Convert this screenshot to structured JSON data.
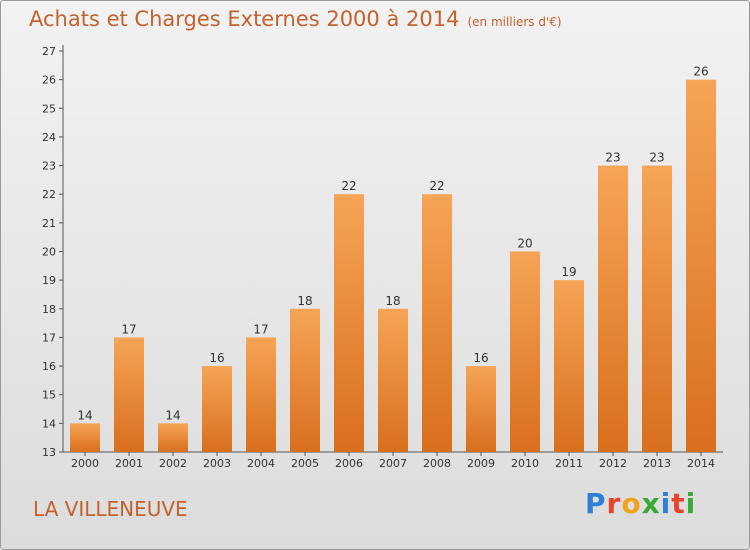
{
  "header": {
    "title": "Achats et Charges Externes 2000 à 2014",
    "unit": "(en milliers d'€)"
  },
  "footer": {
    "place": "LA VILLENEUVE",
    "logo": "Proxiti"
  },
  "colors": {
    "accent": "#c4622e",
    "bar_top": "#f6a456",
    "bar_bottom": "#d86f1d"
  },
  "chart_data": {
    "type": "bar",
    "title": "Achats et Charges Externes 2000 à 2014",
    "subtitle": "(en milliers d'€)",
    "categories": [
      "2000",
      "2001",
      "2002",
      "2003",
      "2004",
      "2005",
      "2006",
      "2007",
      "2008",
      "2009",
      "2010",
      "2011",
      "2012",
      "2013",
      "2014"
    ],
    "values": [
      14,
      17,
      14,
      16,
      17,
      18,
      22,
      18,
      22,
      16,
      20,
      19,
      23,
      23,
      26
    ],
    "ylim": [
      13,
      27
    ],
    "yticks": [
      13,
      14,
      15,
      16,
      17,
      18,
      19,
      20,
      21,
      22,
      23,
      24,
      25,
      26,
      27
    ],
    "grid": false,
    "legend": "none"
  }
}
